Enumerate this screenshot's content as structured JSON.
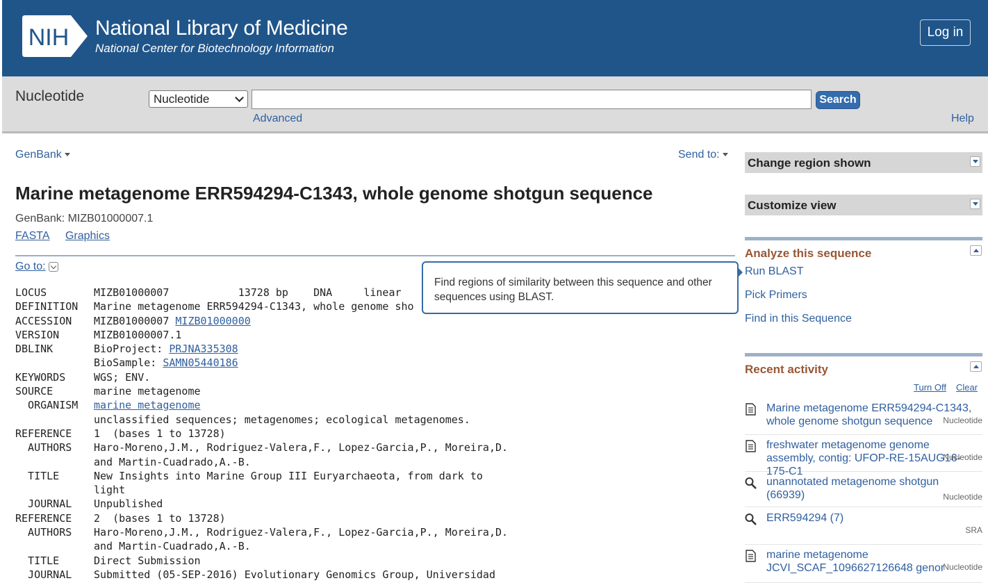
{
  "header": {
    "logo_text": "NIH",
    "title": "National Library of Medicine",
    "subtitle": "National Center for Biotechnology Information",
    "login_label": "Log in"
  },
  "search": {
    "db_title": "Nucleotide",
    "db_selected": "Nucleotide",
    "query": "",
    "search_label": "Search",
    "advanced_label": "Advanced",
    "help_label": "Help"
  },
  "record": {
    "format_label": "GenBank",
    "sendto_label": "Send to:",
    "title": "Marine metagenome ERR594294-C1343, whole genome shotgun sequence",
    "accession_line": "GenBank: MIZB01000007.1",
    "fasta_label": "FASTA",
    "graphics_label": "Graphics",
    "goto_label": "Go to:"
  },
  "flatfile": [
    {
      "key": "LOCUS",
      "val": "MIZB01000007           13728 bp    DNA     linear"
    },
    {
      "key": "DEFINITION",
      "val": "Marine metagenome ERR594294-C1343, whole genome sho"
    },
    {
      "key": "ACCESSION",
      "val": "MIZB01000007 ",
      "link": "MIZB01000000"
    },
    {
      "key": "VERSION",
      "val": "MIZB01000007.1"
    },
    {
      "key": "DBLINK",
      "val": "BioProject: ",
      "link": "PRJNA335308"
    },
    {
      "key": "",
      "val": "BioSample: ",
      "link": "SAMN05440186"
    },
    {
      "key": "KEYWORDS",
      "val": "WGS; ENV."
    },
    {
      "key": "SOURCE",
      "val": "marine metagenome"
    },
    {
      "key": "  ORGANISM",
      "val": "",
      "link": "marine metagenome"
    },
    {
      "key": "",
      "val": "unclassified sequences; metagenomes; ecological metagenomes."
    },
    {
      "key": "REFERENCE",
      "val": "1  (bases 1 to 13728)"
    },
    {
      "key": "  AUTHORS",
      "val": "Haro-Moreno,J.M., Rodriguez-Valera,F., Lopez-Garcia,P., Moreira,D."
    },
    {
      "key": "",
      "val": "and Martin-Cuadrado,A.-B."
    },
    {
      "key": "  TITLE",
      "val": "New Insights into Marine Group III Euryarchaeota, from dark to"
    },
    {
      "key": "",
      "val": "light"
    },
    {
      "key": "  JOURNAL",
      "val": "Unpublished"
    },
    {
      "key": "REFERENCE",
      "val": "2  (bases 1 to 13728)"
    },
    {
      "key": "  AUTHORS",
      "val": "Haro-Moreno,J.M., Rodriguez-Valera,F., Lopez-Garcia,P., Moreira,D."
    },
    {
      "key": "",
      "val": "and Martin-Cuadrado,A.-B."
    },
    {
      "key": "  TITLE",
      "val": "Direct Submission"
    },
    {
      "key": "  JOURNAL",
      "val": "Submitted (05-SEP-2016) Evolutionary Genomics Group, Universidad"
    }
  ],
  "tooltip": {
    "text": "Find regions of similarity between this sequence and other sequences using BLAST."
  },
  "sidebar": {
    "change_region": "Change region shown",
    "customize_view": "Customize view",
    "analyze_title": "Analyze this sequence",
    "analyze_links": [
      "Run BLAST",
      "Pick Primers",
      "Find in this Sequence"
    ],
    "recent_title": "Recent activity",
    "turn_off": "Turn Off",
    "clear": "Clear",
    "recent": [
      {
        "icon": "document-icon",
        "text": "Marine metagenome ERR594294-C1343, whole genome shotgun sequence",
        "db": "Nucleotide"
      },
      {
        "icon": "document-icon",
        "text": "freshwater metagenome genome assembly, contig: UFOP-RE-15AUG16-175-C1",
        "db": "Nucleotide"
      },
      {
        "icon": "magnifier-icon",
        "text": "unannotated metagenome shotgun (66939)",
        "db": "Nucleotide"
      },
      {
        "icon": "magnifier-icon",
        "text": "ERR594294 (7)",
        "db": "SRA"
      },
      {
        "icon": "document-icon",
        "text": "marine metagenome JCVI_SCAF_1096627126648 genor",
        "db": "Nucleotide"
      }
    ]
  }
}
